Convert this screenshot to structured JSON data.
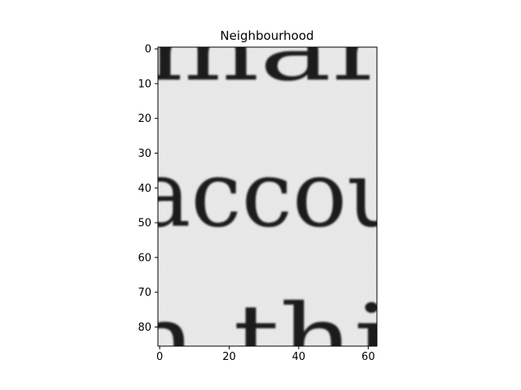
{
  "chart_data": {
    "type": "heatmap",
    "title": "Neighbourhood",
    "xlabel": "",
    "ylabel": "",
    "colormap": "gray",
    "image_width": 63,
    "image_height": 86,
    "xlim": [
      -0.5,
      62.5
    ],
    "ylim": [
      85.5,
      -0.5
    ],
    "x_ticks": [
      0,
      20,
      40,
      60
    ],
    "x_tick_labels": [
      "0",
      "20",
      "40",
      "60"
    ],
    "y_ticks": [
      0,
      10,
      20,
      30,
      40,
      50,
      60,
      70,
      80
    ],
    "y_tick_labels": [
      "0",
      "10",
      "20",
      "30",
      "40",
      "50",
      "60",
      "70",
      "80"
    ],
    "grid": false,
    "legend": "none",
    "image_content": "grayscale crop of scanned printed serif text showing fragments 'mar', 'accou', 'thi'"
  }
}
